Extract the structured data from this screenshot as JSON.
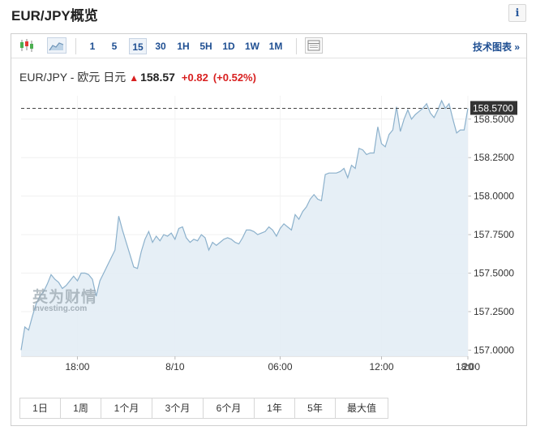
{
  "page": {
    "title": "EUR/JPY概览",
    "info_label": "i"
  },
  "toolbar": {
    "timeframes": [
      "1",
      "5",
      "15",
      "30",
      "1H",
      "5H",
      "1D",
      "1W",
      "1M"
    ],
    "active_timeframe": "15",
    "tech_chart_label": "技术图表 »",
    "icons": [
      "candlestick-icon",
      "area-chart-icon",
      "table-icon"
    ]
  },
  "quote": {
    "pair": "EUR/JPY - 欧元 日元",
    "price": "158.57",
    "change": "+0.82",
    "change_pct": "(+0.52%)",
    "up_color": "#d81f1f"
  },
  "watermark": {
    "cn": "英为财情",
    "en": "Investing.com"
  },
  "range_buttons": [
    "1日",
    "1周",
    "1个月",
    "3个月",
    "6个月",
    "1年",
    "5年",
    "最大值"
  ],
  "chart_data": {
    "type": "area",
    "y_tick_labels": [
      "157.0000",
      "157.2500",
      "157.5000",
      "157.7500",
      "158.0000",
      "158.2500",
      "158.5000"
    ],
    "x_tick_labels": [
      "18:00",
      "8/10",
      "06:00",
      "12:00",
      "18:00",
      "20"
    ],
    "ylim": [
      156.96,
      158.62
    ],
    "last_value_label": "158.5700",
    "last_value": 158.57,
    "line_color": "#8cb1cc",
    "fill_color": "#e3edf5",
    "values": [
      157.0,
      157.15,
      157.13,
      157.22,
      157.3,
      157.35,
      157.38,
      157.43,
      157.49,
      157.46,
      157.44,
      157.4,
      157.42,
      157.45,
      157.48,
      157.45,
      157.5,
      157.5,
      157.49,
      157.46,
      157.35,
      157.45,
      157.5,
      157.55,
      157.6,
      157.65,
      157.87,
      157.78,
      157.7,
      157.62,
      157.54,
      157.53,
      157.64,
      157.72,
      157.77,
      157.7,
      157.74,
      157.71,
      157.75,
      157.74,
      157.76,
      157.72,
      157.79,
      157.8,
      157.73,
      157.7,
      157.72,
      157.71,
      157.75,
      157.73,
      157.65,
      157.7,
      157.68,
      157.7,
      157.72,
      157.73,
      157.72,
      157.7,
      157.69,
      157.73,
      157.78,
      157.78,
      157.77,
      157.75,
      157.76,
      157.77,
      157.8,
      157.78,
      157.74,
      157.79,
      157.82,
      157.8,
      157.78,
      157.88,
      157.85,
      157.9,
      157.93,
      157.98,
      158.01,
      157.98,
      157.97,
      158.14,
      158.15,
      158.15,
      158.15,
      158.16,
      158.18,
      158.12,
      158.2,
      158.18,
      158.31,
      158.3,
      158.27,
      158.28,
      158.28,
      158.45,
      158.34,
      158.32,
      158.4,
      158.43,
      158.58,
      158.42,
      158.5,
      158.56,
      158.5,
      158.53,
      158.55,
      158.57,
      158.6,
      158.54,
      158.51,
      158.56,
      158.62,
      158.57,
      158.6,
      158.5,
      158.41,
      158.43,
      158.43,
      158.57
    ]
  }
}
